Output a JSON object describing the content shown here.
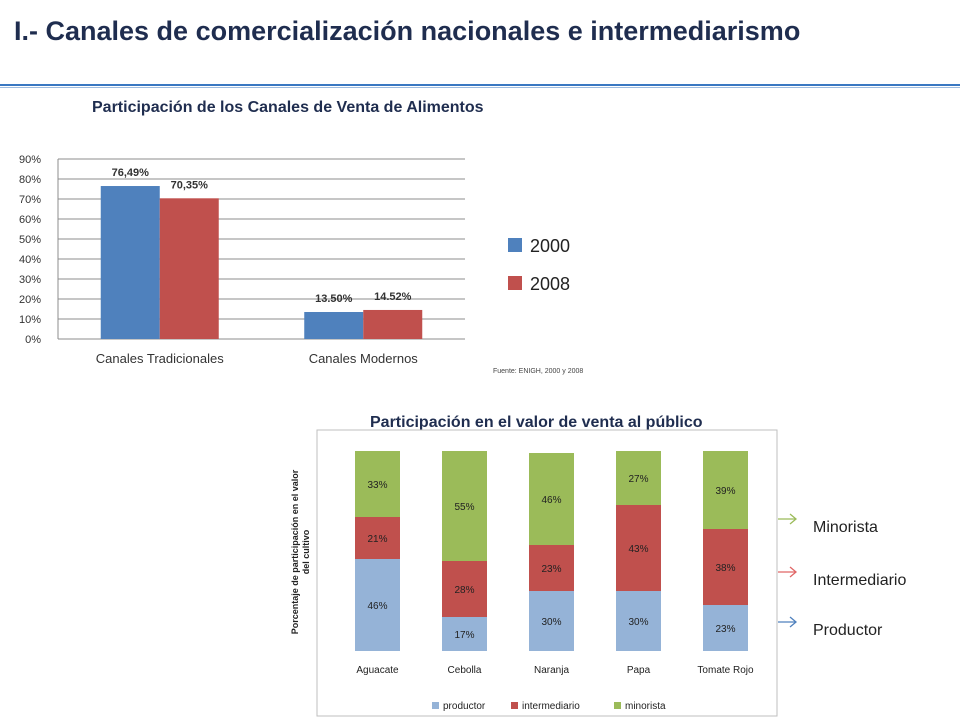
{
  "slide": {
    "title": "I.- Canales de comercialización nacionales e intermediarismo",
    "source_note": "Fuente: ENIGH, 2000 y 2008"
  },
  "colors": {
    "blue": "#4f81bd",
    "red": "#c0504d",
    "light_blue": "#95b3d7",
    "green": "#9bbb59",
    "rule": "#3a78c2"
  },
  "chart_data": [
    {
      "type": "bar",
      "title": "Participación de los Canales de Venta de Alimentos",
      "categories": [
        "Canales Tradicionales",
        "Canales Modernos"
      ],
      "series": [
        {
          "name": "2000",
          "values": [
            76.49,
            13.5
          ],
          "labels": [
            "76,49%",
            "13.50%"
          ],
          "color": "#4f81bd"
        },
        {
          "name": "2008",
          "values": [
            70.35,
            14.52
          ],
          "labels": [
            "70,35%",
            "14.52%"
          ],
          "color": "#c0504d"
        }
      ],
      "ylim": [
        0,
        90
      ],
      "yticks": [
        "0%",
        "10%",
        "20%",
        "30%",
        "40%",
        "50%",
        "60%",
        "70%",
        "80%",
        "90%"
      ],
      "legend_position": "right",
      "grid": true
    },
    {
      "type": "bar",
      "stacked": true,
      "title": "Participación en el valor de venta al público",
      "ylabel": "Porcentaje de participación en el valor del cultivo",
      "categories": [
        "Aguacate",
        "Cebolla",
        "Naranja",
        "Papa",
        "Tomate Rojo"
      ],
      "series": [
        {
          "name": "productor",
          "values": [
            46,
            17,
            30,
            30,
            23
          ],
          "color": "#95b3d7"
        },
        {
          "name": "intermediario",
          "values": [
            21,
            28,
            23,
            43,
            38
          ],
          "color": "#c0504d"
        },
        {
          "name": "minorista",
          "values": [
            33,
            55,
            46,
            27,
            39
          ],
          "color": "#9bbb59"
        }
      ],
      "ylim": [
        0,
        100
      ],
      "legend_position": "bottom",
      "grid": false
    }
  ],
  "side_legend": [
    {
      "label": "Minorista",
      "color": "#9bbb59"
    },
    {
      "label": "Intermediario",
      "color": "#e06666"
    },
    {
      "label": "Productor",
      "color": "#4f81bd"
    }
  ]
}
